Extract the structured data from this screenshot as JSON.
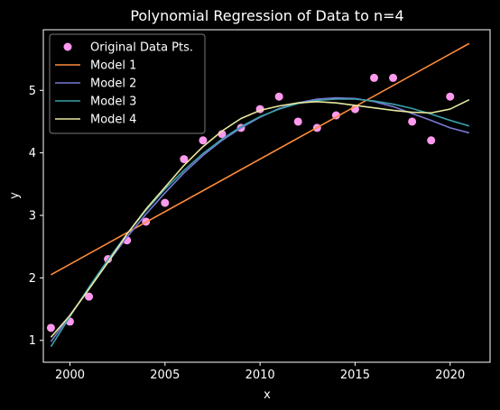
{
  "chart_data": {
    "type": "scatter",
    "title": "Polynomial Regression of Data to n=4",
    "xlabel": "x",
    "ylabel": "y",
    "xlim": [
      1998.6,
      2022.1
    ],
    "ylim": [
      0.65,
      5.97
    ],
    "xticks": [
      2000,
      2005,
      2010,
      2015,
      2020
    ],
    "yticks": [
      1,
      2,
      3,
      4,
      5
    ],
    "grid": false,
    "legend_position": "top-left",
    "points": {
      "name": "Original Data Pts.",
      "color": "#ff99ee",
      "x": [
        1999,
        2000,
        2001,
        2002,
        2003,
        2004,
        2005,
        2006,
        2007,
        2008,
        2009,
        2010,
        2011,
        2012,
        2013,
        2014,
        2015,
        2016,
        2017,
        2018,
        2019,
        2020
      ],
      "y": [
        1.2,
        1.3,
        1.7,
        2.3,
        2.6,
        2.9,
        3.2,
        3.9,
        4.2,
        4.3,
        4.4,
        4.7,
        4.9,
        4.5,
        4.4,
        4.6,
        4.7,
        5.2,
        5.2,
        4.5,
        4.2,
        4.9
      ]
    },
    "series": [
      {
        "name": "Model 1",
        "color": "#ff8c3a",
        "x": [
          1999,
          2021
        ],
        "y": [
          2.05,
          5.75
        ]
      },
      {
        "name": "Model 2",
        "color": "#7a7ad8",
        "x": [
          1999,
          2000,
          2001,
          2002,
          2003,
          2004,
          2005,
          2006,
          2007,
          2008,
          2009,
          2010,
          2011,
          2012,
          2013,
          2014,
          2015,
          2016,
          2017,
          2018,
          2019,
          2020,
          2021
        ],
        "y": [
          0.98,
          1.4,
          1.83,
          2.25,
          2.65,
          3.02,
          3.36,
          3.68,
          3.96,
          4.2,
          4.4,
          4.57,
          4.71,
          4.8,
          4.86,
          4.88,
          4.87,
          4.82,
          4.74,
          4.63,
          4.52,
          4.4,
          4.32
        ]
      },
      {
        "name": "Model 3",
        "color": "#3aa0a8",
        "x": [
          1999,
          2000,
          2001,
          2002,
          2003,
          2004,
          2005,
          2006,
          2007,
          2008,
          2009,
          2010,
          2011,
          2012,
          2013,
          2014,
          2015,
          2016,
          2017,
          2018,
          2019,
          2020,
          2021
        ],
        "y": [
          0.9,
          1.38,
          1.85,
          2.29,
          2.7,
          3.08,
          3.42,
          3.72,
          3.99,
          4.22,
          4.42,
          4.58,
          4.7,
          4.79,
          4.84,
          4.86,
          4.86,
          4.83,
          4.78,
          4.71,
          4.62,
          4.52,
          4.43
        ]
      },
      {
        "name": "Model 4",
        "color": "#e8e8a0",
        "x": [
          1999,
          2000,
          2001,
          2002,
          2003,
          2004,
          2005,
          2006,
          2007,
          2008,
          2009,
          2010,
          2011,
          2012,
          2013,
          2014,
          2015,
          2016,
          2017,
          2018,
          2019,
          2020,
          2021
        ],
        "y": [
          1.05,
          1.4,
          1.82,
          2.25,
          2.7,
          3.1,
          3.45,
          3.8,
          4.1,
          4.35,
          4.55,
          4.68,
          4.75,
          4.8,
          4.82,
          4.8,
          4.76,
          4.72,
          4.68,
          4.65,
          4.64,
          4.7,
          4.85
        ]
      }
    ]
  }
}
